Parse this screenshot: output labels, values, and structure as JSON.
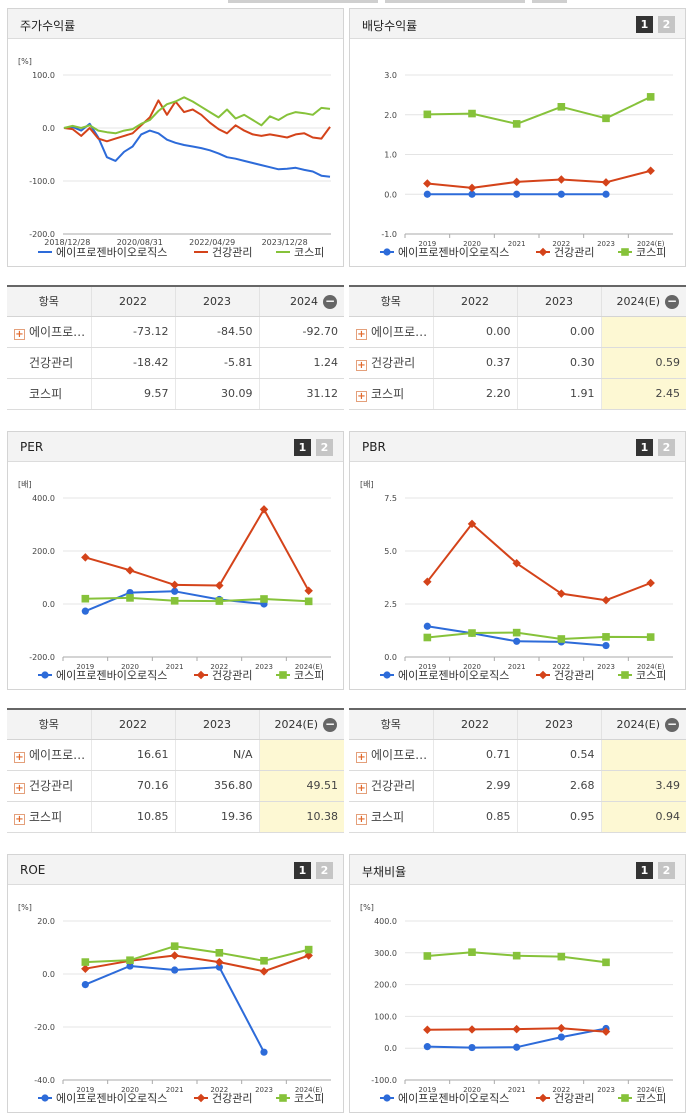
{
  "series_names": [
    "에이프로젠바이오로직스",
    "건강관리",
    "코스피"
  ],
  "colors": {
    "s1": "#2d6bd9",
    "s2": "#d4431a",
    "s3": "#86c23a"
  },
  "buttons": {
    "b1": "1",
    "b2": "2"
  },
  "stock": {
    "title": "주가수익률",
    "table": {
      "header": [
        "항목",
        "2022",
        "2023",
        "2024"
      ],
      "rows": [
        {
          "name": "에이프로…",
          "vals": [
            "-73.12",
            "-84.50",
            "-92.70"
          ]
        },
        {
          "name": "건강관리",
          "vals": [
            "-18.42",
            "-5.81",
            "1.24"
          ]
        },
        {
          "name": "코스피",
          "vals": [
            "9.57",
            "30.09",
            "31.12"
          ]
        }
      ]
    }
  },
  "dividend": {
    "title": "배당수익률",
    "table": {
      "header": [
        "항목",
        "2022",
        "2023",
        "2024(E)"
      ],
      "rows": [
        {
          "name": "에이프로…",
          "vals": [
            "0.00",
            "0.00",
            ""
          ]
        },
        {
          "name": "건강관리",
          "vals": [
            "0.37",
            "0.30",
            "0.59"
          ]
        },
        {
          "name": "코스피",
          "vals": [
            "2.20",
            "1.91",
            "2.45"
          ]
        }
      ]
    }
  },
  "per": {
    "title": "PER",
    "table": {
      "header": [
        "항목",
        "2022",
        "2023",
        "2024(E)"
      ],
      "rows": [
        {
          "name": "에이프로…",
          "vals": [
            "16.61",
            "N/A",
            ""
          ]
        },
        {
          "name": "건강관리",
          "vals": [
            "70.16",
            "356.80",
            "49.51"
          ]
        },
        {
          "name": "코스피",
          "vals": [
            "10.85",
            "19.36",
            "10.38"
          ]
        }
      ]
    }
  },
  "pbr": {
    "title": "PBR",
    "table": {
      "header": [
        "항목",
        "2022",
        "2023",
        "2024(E)"
      ],
      "rows": [
        {
          "name": "에이프로…",
          "vals": [
            "0.71",
            "0.54",
            ""
          ]
        },
        {
          "name": "건강관리",
          "vals": [
            "2.99",
            "2.68",
            "3.49"
          ]
        },
        {
          "name": "코스피",
          "vals": [
            "0.85",
            "0.95",
            "0.94"
          ]
        }
      ]
    }
  },
  "roe": {
    "title": "ROE"
  },
  "debt": {
    "title": "부채비율"
  },
  "chart_data": [
    {
      "id": "stock",
      "type": "line",
      "title": "주가수익률",
      "unit": "[%]",
      "ylim": [
        -200,
        100
      ],
      "yticks": [
        "100.0",
        "0.0",
        "-100.0",
        "-200.0"
      ],
      "xticklabels": [
        "2018/12/28",
        "2020/08/31",
        "2022/04/29",
        "2023/12/28"
      ],
      "series": [
        {
          "name": "에이프로젠바이오로직스",
          "values": [
            0,
            2,
            -5,
            8,
            -18,
            -55,
            -62,
            -45,
            -35,
            -12,
            -5,
            -10,
            -22,
            -28,
            -32,
            -35,
            -38,
            -42,
            -48,
            -55,
            -58,
            -62,
            -66,
            -70,
            -74,
            -78,
            -77,
            -75,
            -79,
            -82,
            -90,
            -92
          ]
        },
        {
          "name": "건강관리",
          "values": [
            0,
            -2,
            -15,
            0,
            -20,
            -25,
            -20,
            -15,
            -10,
            5,
            20,
            52,
            25,
            50,
            30,
            35,
            25,
            10,
            -2,
            -10,
            5,
            -5,
            -12,
            -15,
            -12,
            -15,
            -18,
            -12,
            -10,
            -18,
            -20,
            2
          ]
        },
        {
          "name": "코스피",
          "values": [
            0,
            4,
            0,
            5,
            -5,
            -8,
            -10,
            -5,
            -2,
            8,
            15,
            32,
            45,
            50,
            58,
            50,
            40,
            30,
            20,
            35,
            18,
            25,
            15,
            5,
            22,
            15,
            25,
            30,
            28,
            25,
            38,
            36
          ]
        }
      ]
    },
    {
      "id": "dividend",
      "type": "line",
      "title": "배당수익률",
      "ylim": [
        -1,
        3
      ],
      "yticks": [
        "3.0",
        "2.0",
        "1.0",
        "0.0",
        "-1.0"
      ],
      "categories": [
        "2019",
        "2020",
        "2021",
        "2022",
        "2023",
        "2024(E)"
      ],
      "series": [
        {
          "name": "에이프로젠바이오로직스",
          "values": [
            0,
            0,
            0,
            0,
            0,
            null
          ]
        },
        {
          "name": "건강관리",
          "values": [
            0.27,
            0.16,
            0.31,
            0.37,
            0.3,
            0.59
          ]
        },
        {
          "name": "코스피",
          "values": [
            2.01,
            2.03,
            1.77,
            2.2,
            1.91,
            2.45
          ]
        }
      ]
    },
    {
      "id": "per",
      "type": "line",
      "title": "PER",
      "unit": "[배]",
      "ylim": [
        -200,
        400
      ],
      "yticks": [
        "400.0",
        "200.0",
        "0.0",
        "-200.0"
      ],
      "categories": [
        "2019",
        "2020",
        "2021",
        "2022",
        "2023",
        "2024(E)"
      ],
      "series": [
        {
          "name": "에이프로젠바이오로직스",
          "values": [
            -27,
            43,
            48,
            17,
            0,
            null
          ]
        },
        {
          "name": "건강관리",
          "values": [
            176,
            127,
            72,
            70,
            357,
            50
          ]
        },
        {
          "name": "코스피",
          "values": [
            20,
            23,
            12,
            11,
            19,
            10
          ]
        }
      ]
    },
    {
      "id": "pbr",
      "type": "line",
      "title": "PBR",
      "unit": "[배]",
      "ylim": [
        0,
        7.5
      ],
      "yticks": [
        "7.5",
        "5.0",
        "2.5",
        "0.0"
      ],
      "categories": [
        "2019",
        "2020",
        "2021",
        "2022",
        "2023",
        "2024(E)"
      ],
      "series": [
        {
          "name": "에이프로젠바이오로직스",
          "values": [
            1.45,
            1.12,
            0.74,
            0.71,
            0.54,
            null
          ]
        },
        {
          "name": "건강관리",
          "values": [
            3.55,
            6.28,
            4.42,
            2.99,
            2.68,
            3.49
          ]
        },
        {
          "name": "코스피",
          "values": [
            0.92,
            1.13,
            1.15,
            0.85,
            0.95,
            0.94
          ]
        }
      ]
    },
    {
      "id": "roe",
      "type": "line",
      "title": "ROE",
      "unit": "[%]",
      "ylim": [
        -40,
        20
      ],
      "yticks": [
        "20.0",
        "0.0",
        "-20.0",
        "-40.0"
      ],
      "categories": [
        "2019",
        "2020",
        "2021",
        "2022",
        "2023",
        "2024(E)"
      ],
      "series": [
        {
          "name": "에이프로젠바이오로직스",
          "values": [
            -4,
            3,
            1.5,
            2.6,
            -29.5,
            null
          ]
        },
        {
          "name": "건강관리",
          "values": [
            2,
            5,
            7,
            4.5,
            1,
            7
          ]
        },
        {
          "name": "코스피",
          "values": [
            4.5,
            5.2,
            10.5,
            8,
            5,
            9.2
          ]
        }
      ]
    },
    {
      "id": "debt",
      "type": "line",
      "title": "부채비율",
      "unit": "[%]",
      "ylim": [
        -100,
        400
      ],
      "yticks": [
        "400.0",
        "300.0",
        "200.0",
        "100.0",
        "0.0",
        "-100.0"
      ],
      "categories": [
        "2019",
        "2020",
        "2021",
        "2022",
        "2023",
        "2024(E)"
      ],
      "series": [
        {
          "name": "에이프로젠바이오로직스",
          "values": [
            5,
            2,
            3,
            35,
            62,
            null
          ]
        },
        {
          "name": "건강관리",
          "values": [
            58,
            59,
            60,
            63,
            52,
            null
          ]
        },
        {
          "name": "코스피",
          "values": [
            290,
            302,
            291,
            288,
            270,
            null
          ]
        }
      ]
    }
  ]
}
